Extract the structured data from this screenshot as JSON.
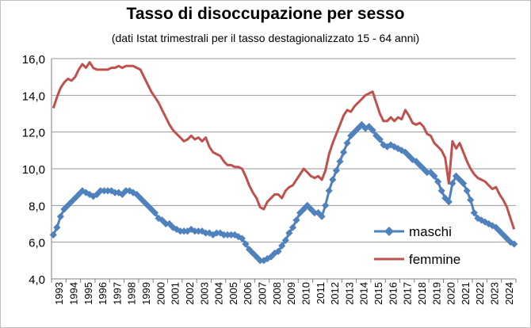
{
  "chart_data": {
    "type": "line",
    "title": "Tasso di disoccupazione per sesso",
    "subtitle": "(dati Istat trimestrali  per il tasso destagionalizzato  15 - 64 anni)",
    "ylim": [
      4,
      16
    ],
    "yticks": [
      "4,0",
      "6,0",
      "8,0",
      "10,0",
      "12,0",
      "14,0",
      "16,0"
    ],
    "xlim": [
      1993,
      2025
    ],
    "xticks": [
      "1993",
      "1994",
      "1995",
      "1996",
      "1997",
      "1998",
      "1999",
      "2000",
      "2001",
      "2002",
      "2003",
      "2004",
      "2005",
      "2006",
      "2007",
      "2008",
      "2009",
      "2010",
      "2011",
      "2012",
      "2013",
      "2014",
      "2015",
      "2016",
      "2017",
      "2018",
      "2019",
      "2020",
      "2021",
      "2022",
      "2023",
      "2024"
    ],
    "grid": "horizontal",
    "legend_position": "bottom-right-inside",
    "series": [
      {
        "name": "maschi",
        "color": "#4f81bd",
        "marker": "diamond",
        "points": [
          [
            1993.0,
            6.4
          ],
          [
            1993.25,
            6.8
          ],
          [
            1993.5,
            7.4
          ],
          [
            1993.75,
            7.8
          ],
          [
            1994.0,
            8.0
          ],
          [
            1994.25,
            8.2
          ],
          [
            1994.5,
            8.4
          ],
          [
            1994.75,
            8.6
          ],
          [
            1995.0,
            8.8
          ],
          [
            1995.25,
            8.7
          ],
          [
            1995.5,
            8.6
          ],
          [
            1995.75,
            8.5
          ],
          [
            1996.0,
            8.6
          ],
          [
            1996.25,
            8.8
          ],
          [
            1996.5,
            8.8
          ],
          [
            1996.75,
            8.8
          ],
          [
            1997.0,
            8.8
          ],
          [
            1997.25,
            8.7
          ],
          [
            1997.5,
            8.7
          ],
          [
            1997.75,
            8.6
          ],
          [
            1998.0,
            8.8
          ],
          [
            1998.25,
            8.8
          ],
          [
            1998.5,
            8.7
          ],
          [
            1998.75,
            8.6
          ],
          [
            1999.0,
            8.4
          ],
          [
            1999.25,
            8.2
          ],
          [
            1999.5,
            8.0
          ],
          [
            1999.75,
            7.8
          ],
          [
            2000.0,
            7.6
          ],
          [
            2000.25,
            7.3
          ],
          [
            2000.5,
            7.2
          ],
          [
            2000.75,
            7.0
          ],
          [
            2001.0,
            7.0
          ],
          [
            2001.25,
            6.8
          ],
          [
            2001.5,
            6.7
          ],
          [
            2001.75,
            6.6
          ],
          [
            2002.0,
            6.6
          ],
          [
            2002.25,
            6.6
          ],
          [
            2002.5,
            6.7
          ],
          [
            2002.75,
            6.6
          ],
          [
            2003.0,
            6.6
          ],
          [
            2003.25,
            6.6
          ],
          [
            2003.5,
            6.5
          ],
          [
            2003.75,
            6.5
          ],
          [
            2004.0,
            6.4
          ],
          [
            2004.25,
            6.5
          ],
          [
            2004.5,
            6.5
          ],
          [
            2004.75,
            6.4
          ],
          [
            2005.0,
            6.4
          ],
          [
            2005.25,
            6.4
          ],
          [
            2005.5,
            6.4
          ],
          [
            2005.75,
            6.3
          ],
          [
            2006.0,
            6.2
          ],
          [
            2006.25,
            5.9
          ],
          [
            2006.5,
            5.6
          ],
          [
            2006.75,
            5.4
          ],
          [
            2007.0,
            5.2
          ],
          [
            2007.25,
            5.0
          ],
          [
            2007.5,
            5.0
          ],
          [
            2007.75,
            5.1
          ],
          [
            2008.0,
            5.2
          ],
          [
            2008.25,
            5.4
          ],
          [
            2008.5,
            5.5
          ],
          [
            2008.75,
            5.8
          ],
          [
            2009.0,
            6.1
          ],
          [
            2009.25,
            6.5
          ],
          [
            2009.5,
            6.8
          ],
          [
            2009.75,
            7.2
          ],
          [
            2010.0,
            7.6
          ],
          [
            2010.25,
            7.8
          ],
          [
            2010.5,
            8.0
          ],
          [
            2010.75,
            7.8
          ],
          [
            2011.0,
            7.6
          ],
          [
            2011.25,
            7.6
          ],
          [
            2011.5,
            7.4
          ],
          [
            2011.75,
            8.0
          ],
          [
            2012.0,
            8.8
          ],
          [
            2012.25,
            9.4
          ],
          [
            2012.5,
            9.9
          ],
          [
            2012.75,
            10.4
          ],
          [
            2013.0,
            10.9
          ],
          [
            2013.25,
            11.4
          ],
          [
            2013.5,
            11.8
          ],
          [
            2013.75,
            12.0
          ],
          [
            2014.0,
            12.2
          ],
          [
            2014.25,
            12.4
          ],
          [
            2014.5,
            12.2
          ],
          [
            2014.75,
            12.3
          ],
          [
            2015.0,
            12.1
          ],
          [
            2015.25,
            11.8
          ],
          [
            2015.5,
            11.6
          ],
          [
            2015.75,
            11.3
          ],
          [
            2016.0,
            11.2
          ],
          [
            2016.25,
            11.3
          ],
          [
            2016.5,
            11.2
          ],
          [
            2016.75,
            11.1
          ],
          [
            2017.0,
            11.0
          ],
          [
            2017.25,
            10.9
          ],
          [
            2017.5,
            10.7
          ],
          [
            2017.75,
            10.5
          ],
          [
            2018.0,
            10.4
          ],
          [
            2018.25,
            10.2
          ],
          [
            2018.5,
            10.0
          ],
          [
            2018.75,
            9.8
          ],
          [
            2019.0,
            9.8
          ],
          [
            2019.25,
            9.6
          ],
          [
            2019.5,
            9.3
          ],
          [
            2019.75,
            8.8
          ],
          [
            2020.0,
            8.4
          ],
          [
            2020.25,
            8.2
          ],
          [
            2020.5,
            9.2
          ],
          [
            2020.75,
            9.6
          ],
          [
            2021.0,
            9.4
          ],
          [
            2021.25,
            9.2
          ],
          [
            2021.5,
            8.8
          ],
          [
            2021.75,
            8.3
          ],
          [
            2022.0,
            7.6
          ],
          [
            2022.25,
            7.3
          ],
          [
            2022.5,
            7.2
          ],
          [
            2022.75,
            7.1
          ],
          [
            2023.0,
            7.0
          ],
          [
            2023.25,
            6.9
          ],
          [
            2023.5,
            6.8
          ],
          [
            2023.75,
            6.6
          ],
          [
            2024.0,
            6.4
          ],
          [
            2024.25,
            6.2
          ],
          [
            2024.5,
            6.0
          ],
          [
            2024.75,
            5.9
          ]
        ]
      },
      {
        "name": "femmine",
        "color": "#c0504d",
        "marker": "none",
        "points": [
          [
            1993.0,
            13.3
          ],
          [
            1993.25,
            13.9
          ],
          [
            1993.5,
            14.4
          ],
          [
            1993.75,
            14.7
          ],
          [
            1994.0,
            14.9
          ],
          [
            1994.25,
            14.8
          ],
          [
            1994.5,
            15.0
          ],
          [
            1994.75,
            15.4
          ],
          [
            1995.0,
            15.7
          ],
          [
            1995.25,
            15.5
          ],
          [
            1995.5,
            15.8
          ],
          [
            1995.75,
            15.5
          ],
          [
            1996.0,
            15.4
          ],
          [
            1996.25,
            15.4
          ],
          [
            1996.5,
            15.4
          ],
          [
            1996.75,
            15.4
          ],
          [
            1997.0,
            15.5
          ],
          [
            1997.25,
            15.5
          ],
          [
            1997.5,
            15.6
          ],
          [
            1997.75,
            15.5
          ],
          [
            1998.0,
            15.6
          ],
          [
            1998.25,
            15.6
          ],
          [
            1998.5,
            15.6
          ],
          [
            1998.75,
            15.5
          ],
          [
            1999.0,
            15.4
          ],
          [
            1999.25,
            15.0
          ],
          [
            1999.5,
            14.6
          ],
          [
            1999.75,
            14.2
          ],
          [
            2000.0,
            13.9
          ],
          [
            2000.25,
            13.6
          ],
          [
            2000.5,
            13.2
          ],
          [
            2000.75,
            12.8
          ],
          [
            2001.0,
            12.4
          ],
          [
            2001.25,
            12.1
          ],
          [
            2001.5,
            11.9
          ],
          [
            2001.75,
            11.7
          ],
          [
            2002.0,
            11.5
          ],
          [
            2002.25,
            11.6
          ],
          [
            2002.5,
            11.8
          ],
          [
            2002.75,
            11.6
          ],
          [
            2003.0,
            11.7
          ],
          [
            2003.25,
            11.5
          ],
          [
            2003.5,
            11.7
          ],
          [
            2003.75,
            11.2
          ],
          [
            2004.0,
            10.9
          ],
          [
            2004.25,
            10.8
          ],
          [
            2004.5,
            10.7
          ],
          [
            2004.75,
            10.4
          ],
          [
            2005.0,
            10.2
          ],
          [
            2005.25,
            10.2
          ],
          [
            2005.5,
            10.1
          ],
          [
            2005.75,
            10.1
          ],
          [
            2006.0,
            10.0
          ],
          [
            2006.25,
            9.6
          ],
          [
            2006.5,
            9.1
          ],
          [
            2006.75,
            8.7
          ],
          [
            2007.0,
            8.4
          ],
          [
            2007.25,
            7.9
          ],
          [
            2007.5,
            7.8
          ],
          [
            2007.75,
            8.2
          ],
          [
            2008.0,
            8.4
          ],
          [
            2008.25,
            8.6
          ],
          [
            2008.5,
            8.6
          ],
          [
            2008.75,
            8.4
          ],
          [
            2009.0,
            8.8
          ],
          [
            2009.25,
            9.0
          ],
          [
            2009.5,
            9.1
          ],
          [
            2009.75,
            9.4
          ],
          [
            2010.0,
            9.7
          ],
          [
            2010.25,
            10.0
          ],
          [
            2010.5,
            9.8
          ],
          [
            2010.75,
            9.6
          ],
          [
            2011.0,
            9.5
          ],
          [
            2011.25,
            9.6
          ],
          [
            2011.5,
            9.4
          ],
          [
            2011.75,
            9.9
          ],
          [
            2012.0,
            10.8
          ],
          [
            2012.25,
            11.4
          ],
          [
            2012.5,
            11.9
          ],
          [
            2012.75,
            12.4
          ],
          [
            2013.0,
            12.9
          ],
          [
            2013.25,
            13.2
          ],
          [
            2013.5,
            13.1
          ],
          [
            2013.75,
            13.4
          ],
          [
            2014.0,
            13.6
          ],
          [
            2014.25,
            13.8
          ],
          [
            2014.5,
            14.0
          ],
          [
            2014.75,
            14.1
          ],
          [
            2015.0,
            14.2
          ],
          [
            2015.25,
            13.6
          ],
          [
            2015.5,
            13.0
          ],
          [
            2015.75,
            12.6
          ],
          [
            2016.0,
            12.6
          ],
          [
            2016.25,
            12.8
          ],
          [
            2016.5,
            12.6
          ],
          [
            2016.75,
            12.8
          ],
          [
            2017.0,
            12.7
          ],
          [
            2017.25,
            13.2
          ],
          [
            2017.5,
            12.9
          ],
          [
            2017.75,
            12.5
          ],
          [
            2018.0,
            12.4
          ],
          [
            2018.25,
            12.5
          ],
          [
            2018.5,
            12.3
          ],
          [
            2018.75,
            11.9
          ],
          [
            2019.0,
            11.8
          ],
          [
            2019.25,
            11.4
          ],
          [
            2019.5,
            11.2
          ],
          [
            2019.75,
            11.0
          ],
          [
            2020.0,
            10.6
          ],
          [
            2020.25,
            9.2
          ],
          [
            2020.5,
            11.5
          ],
          [
            2020.75,
            11.1
          ],
          [
            2021.0,
            11.4
          ],
          [
            2021.25,
            10.9
          ],
          [
            2021.5,
            10.4
          ],
          [
            2021.75,
            10.0
          ],
          [
            2022.0,
            9.7
          ],
          [
            2022.25,
            9.5
          ],
          [
            2022.5,
            9.4
          ],
          [
            2022.75,
            9.3
          ],
          [
            2023.0,
            9.1
          ],
          [
            2023.25,
            8.9
          ],
          [
            2023.5,
            9.0
          ],
          [
            2023.75,
            8.6
          ],
          [
            2024.0,
            8.3
          ],
          [
            2024.25,
            7.9
          ],
          [
            2024.5,
            7.3
          ],
          [
            2024.75,
            6.7
          ]
        ]
      }
    ]
  }
}
